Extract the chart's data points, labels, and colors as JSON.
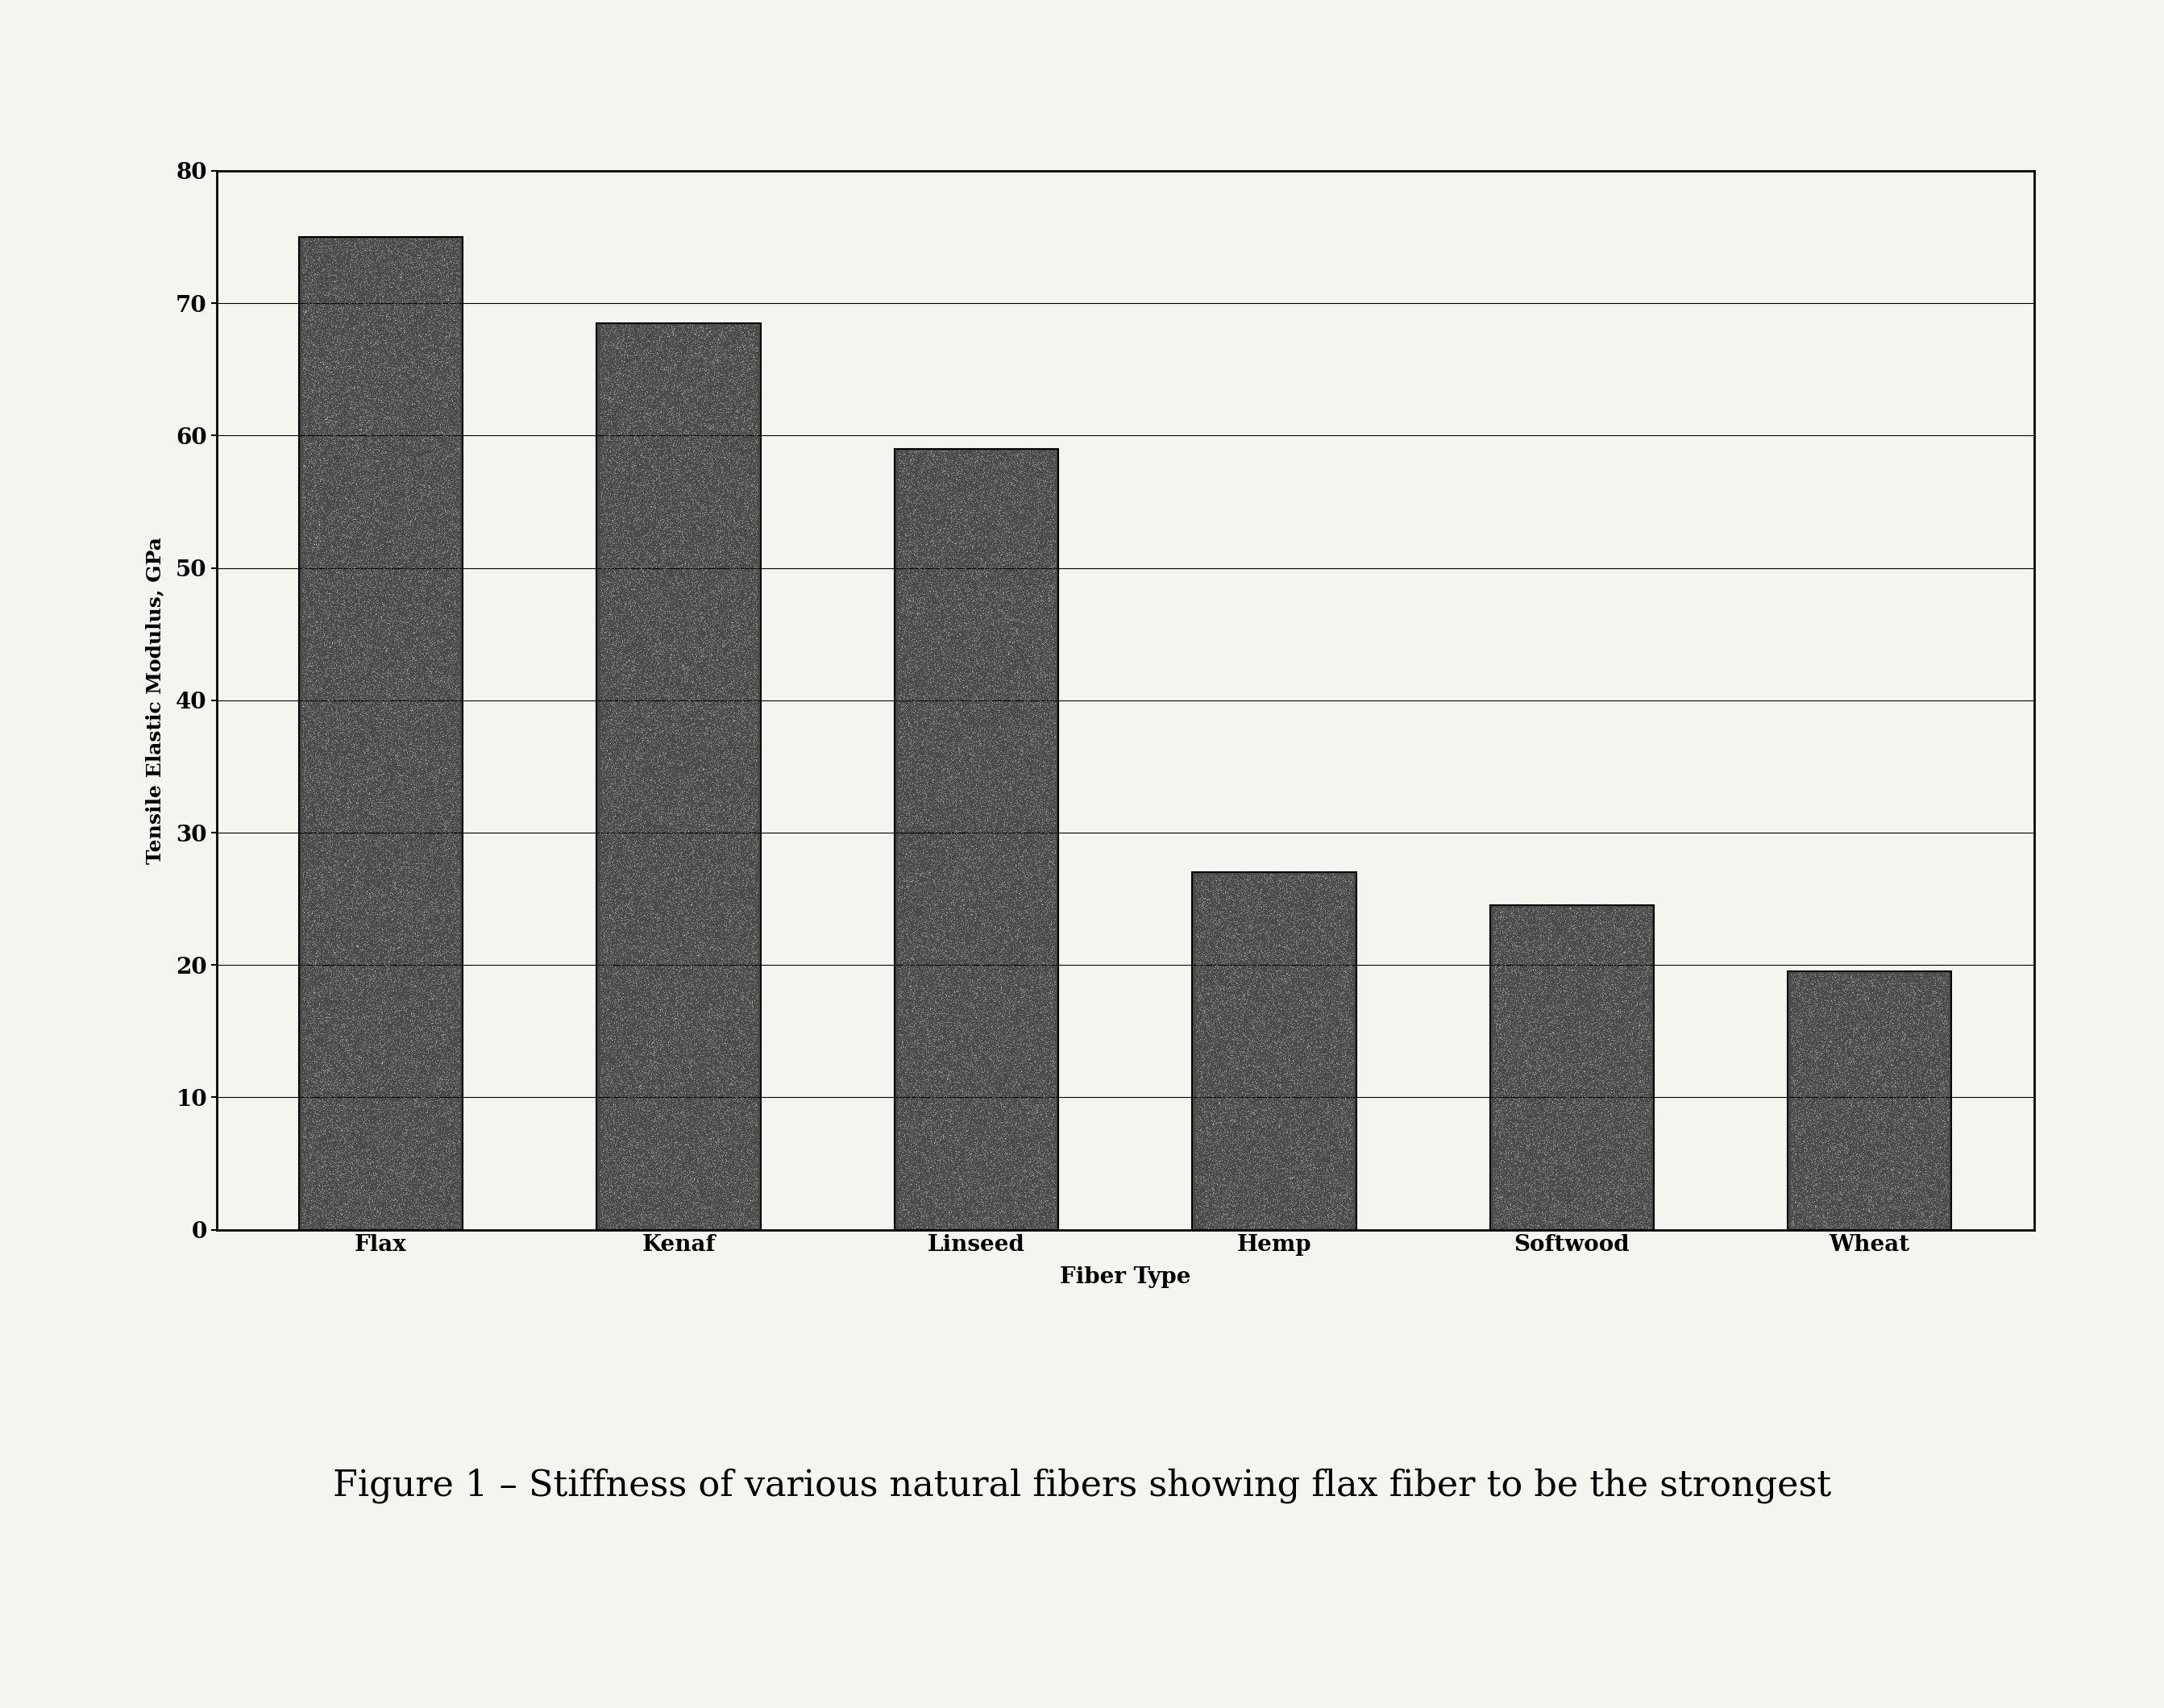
{
  "categories": [
    "Flax",
    "Kenaf",
    "Linseed",
    "Hemp",
    "Softwood",
    "Wheat"
  ],
  "values": [
    75.0,
    68.5,
    59.0,
    27.0,
    24.5,
    19.5
  ],
  "bar_color": "#4a4a4a",
  "xlabel": "Fiber Type",
  "ylabel": "Tensile Elastic Modulus, GPa",
  "ylim": [
    0,
    80
  ],
  "yticks": [
    0,
    10,
    20,
    30,
    40,
    50,
    60,
    70,
    80
  ],
  "caption": "Figure 1 – Stiffness of various natural fibers showing flax fiber to be the strongest",
  "background_color": "#f5f5f0",
  "bar_edge_color": "#000000",
  "grid_color": "#000000",
  "caption_fontsize": 32,
  "axis_label_fontsize": 18,
  "tick_fontsize": 18,
  "bar_width": 0.55
}
